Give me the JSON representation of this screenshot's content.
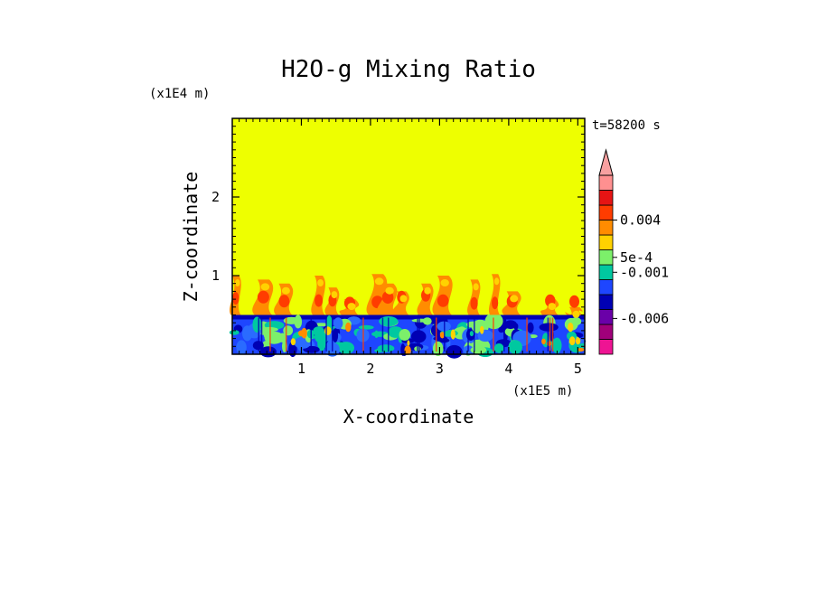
{
  "chart_data": {
    "type": "heatmap",
    "title": "H2O-g Mixing Ratio",
    "xlabel": "X-coordinate",
    "ylabel": "Z-coordinate",
    "x_scale_label": "(x1E5 m)",
    "y_scale_label": "(x1E4 m)",
    "time_label": "t=58200 s",
    "xlim": [
      0,
      5.1
    ],
    "ylim": [
      0,
      3.0
    ],
    "x_ticks": [
      "1",
      "2",
      "3",
      "4",
      "5"
    ],
    "x_tick_values": [
      1,
      2,
      3,
      4,
      5
    ],
    "y_ticks": [
      "1",
      "2"
    ],
    "y_tick_values": [
      1,
      2
    ],
    "colorbar": {
      "labels": [
        {
          "text": "0.004",
          "level": 9
        },
        {
          "text": "5e-4",
          "level": 6.5
        },
        {
          "text": "-0.001",
          "level": 5.5
        },
        {
          "text": "-0.006",
          "level": 2.4
        }
      ],
      "colors": [
        "#ee1493",
        "#a0007a",
        "#6a00a8",
        "#0000b4",
        "#1e46ff",
        "#00c8a0",
        "#7cf06a",
        "#ffd200",
        "#ff8c00",
        "#ff3c00",
        "#e61414",
        "#ff9090"
      ],
      "extend_top": true,
      "extend_color": "#f7a0a0"
    },
    "regions": [
      {
        "name": "background",
        "value_class": "yellow",
        "z_range": [
          0.5,
          3.0
        ]
      },
      {
        "name": "boundary-layer",
        "value_class": "blue-mixed",
        "z_range": [
          0,
          0.5
        ]
      }
    ]
  },
  "colors": {
    "background_field": "#eeff00",
    "layer_blue": "#1e46ff",
    "layer_dark_blue": "#0000b4",
    "plume_orange": "#ff8c00",
    "plume_red": "#ff3c00"
  }
}
